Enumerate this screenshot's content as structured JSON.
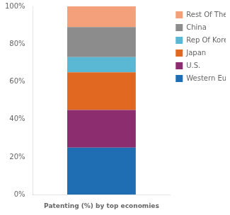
{
  "chart_data": {
    "type": "bar",
    "stacked": true,
    "categories": [
      "Patenting (%) by top economies"
    ],
    "series": [
      {
        "name": "Western Europe",
        "color": "#1F6EB4",
        "values": [
          25
        ]
      },
      {
        "name": "U.S.",
        "color": "#8B2D6E",
        "values": [
          20
        ]
      },
      {
        "name": "Japan",
        "color": "#E06820",
        "values": [
          20
        ]
      },
      {
        "name": "Rep Of Korea",
        "color": "#5BB8D4",
        "values": [
          8
        ]
      },
      {
        "name": "China",
        "color": "#8C8C8C",
        "values": [
          16
        ]
      },
      {
        "name": "Rest Of The World",
        "color": "#F4A07A",
        "values": [
          11
        ]
      }
    ],
    "ylim": [
      0,
      100
    ],
    "yticks": [
      {
        "value": 0,
        "label": "0%"
      },
      {
        "value": 20,
        "label": "20%"
      },
      {
        "value": 40,
        "label": "40%"
      },
      {
        "value": 60,
        "label": "60%"
      },
      {
        "value": 80,
        "label": "80%"
      },
      {
        "value": 100,
        "label": "100%"
      }
    ],
    "grid": false,
    "legend": "upper right"
  }
}
